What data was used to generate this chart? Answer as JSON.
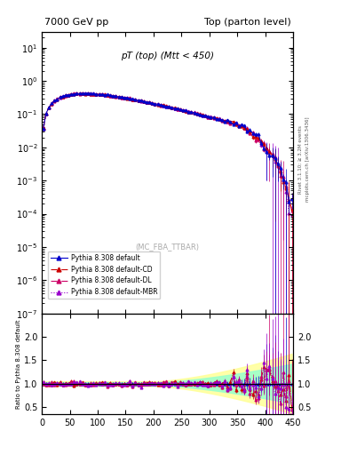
{
  "title_left": "7000 GeV pp",
  "title_right": "Top (parton level)",
  "annotation": "pT (top) (Mtt < 450)",
  "mc_label": "(MC_FBA_TTBAR)",
  "right_label1": "Rivet 3.1.10; ≥ 3.2M events",
  "right_label2": "mcplots.cern.ch [arXiv:1306.3436]",
  "ylabel_ratio": "Ratio to Pythia 8.308 default",
  "xlim": [
    0,
    450
  ],
  "ylim_main": [
    1e-07,
    30
  ],
  "ylim_ratio": [
    0.35,
    2.5
  ],
  "ratio_yticks": [
    0.5,
    1.0,
    1.5,
    2.0
  ],
  "series": [
    {
      "label": "Pythia 8.308 default",
      "color": "#0000cc",
      "linestyle": "-",
      "marker": "^"
    },
    {
      "label": "Pythia 8.308 default-CD",
      "color": "#cc0000",
      "linestyle": "-.",
      "marker": "^"
    },
    {
      "label": "Pythia 8.308 default-DL",
      "color": "#cc0066",
      "linestyle": "-.",
      "marker": "^"
    },
    {
      "label": "Pythia 8.308 default-MBR",
      "color": "#9900cc",
      "linestyle": ":",
      "marker": "^"
    }
  ],
  "band_colors": [
    "#ffff99",
    "#99ffcc"
  ]
}
